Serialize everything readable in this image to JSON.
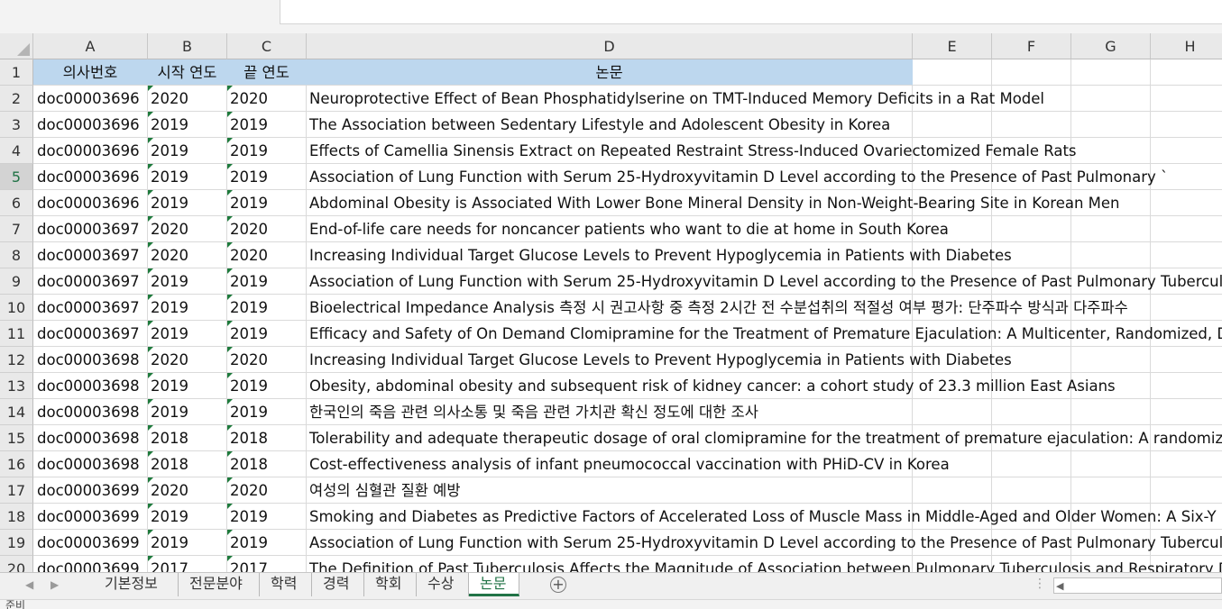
{
  "columns": [
    "A",
    "B",
    "C",
    "D",
    "E",
    "F",
    "G",
    "H"
  ],
  "header_row": {
    "number": "1",
    "cells": [
      "의사번호",
      "시작 연도",
      "끝 연도",
      "논문"
    ]
  },
  "rows": [
    {
      "n": "2",
      "id": "doc00003696",
      "start": "2020",
      "end": "2020",
      "title": "Neuroprotective Effect of Bean Phosphatidylserine on TMT-Induced Memory Deficits in a Rat Model"
    },
    {
      "n": "3",
      "id": "doc00003696",
      "start": "2019",
      "end": "2019",
      "title": "The Association between Sedentary Lifestyle and Adolescent Obesity in Korea"
    },
    {
      "n": "4",
      "id": "doc00003696",
      "start": "2019",
      "end": "2019",
      "title": "Effects of Camellia Sinensis Extract on Repeated Restraint Stress-Induced Ovariectomized Female Rats"
    },
    {
      "n": "5",
      "id": "doc00003696",
      "start": "2019",
      "end": "2019",
      "title": "Association of Lung Function with Serum 25-Hydroxyvitamin D Level according to the Presence of Past Pulmonary `"
    },
    {
      "n": "6",
      "id": "doc00003696",
      "start": "2019",
      "end": "2019",
      "title": "Abdominal Obesity is Associated With Lower Bone Mineral Density in Non-Weight-Bearing Site in Korean Men"
    },
    {
      "n": "7",
      "id": "doc00003697",
      "start": "2020",
      "end": "2020",
      "title": "End-of-life care needs for noncancer patients who want to die at home in South Korea"
    },
    {
      "n": "8",
      "id": "doc00003697",
      "start": "2020",
      "end": "2020",
      "title": "Increasing Individual Target Glucose Levels to Prevent Hypoglycemia in Patients with Diabetes"
    },
    {
      "n": "9",
      "id": "doc00003697",
      "start": "2019",
      "end": "2019",
      "title": "Association of Lung Function with Serum 25-Hydroxyvitamin D Level according to the Presence of Past Pulmonary Tuberculo"
    },
    {
      "n": "10",
      "id": "doc00003697",
      "start": "2019",
      "end": "2019",
      "title": "Bioelectrical Impedance Analysis 측정 시 권고사항 중 측정 2시간 전 수분섭취의 적절성 여부 평가: 단주파수 방식과 다주파수"
    },
    {
      "n": "11",
      "id": "doc00003697",
      "start": "2019",
      "end": "2019",
      "title": "Efficacy and Safety of On Demand Clomipramine for the Treatment of Premature Ejaculation: A Multicenter, Randomized, Do"
    },
    {
      "n": "12",
      "id": "doc00003698",
      "start": "2020",
      "end": "2020",
      "title": "Increasing Individual Target Glucose Levels to Prevent Hypoglycemia in Patients with Diabetes"
    },
    {
      "n": "13",
      "id": "doc00003698",
      "start": "2019",
      "end": "2019",
      "title": "Obesity, abdominal obesity and subsequent risk of kidney cancer: a cohort study of 23.3 million East Asians"
    },
    {
      "n": "14",
      "id": "doc00003698",
      "start": "2019",
      "end": "2019",
      "title": "한국인의 죽음 관련 의사소통 및 죽음 관련 가치관 확신 정도에 대한 조사"
    },
    {
      "n": "15",
      "id": "doc00003698",
      "start": "2018",
      "end": "2018",
      "title": "Tolerability and adequate therapeutic dosage of oral clomipramine for the treatment of premature ejaculation: A randomized"
    },
    {
      "n": "16",
      "id": "doc00003698",
      "start": "2018",
      "end": "2018",
      "title": "Cost-effectiveness analysis of infant pneumococcal vaccination with PHiD-CV in Korea"
    },
    {
      "n": "17",
      "id": "doc00003699",
      "start": "2020",
      "end": "2020",
      "title": "여성의 심혈관 질환 예방"
    },
    {
      "n": "18",
      "id": "doc00003699",
      "start": "2019",
      "end": "2019",
      "title": "Smoking and Diabetes as Predictive Factors of Accelerated Loss of Muscle Mass in Middle-Aged and Older Women: A Six-Y"
    },
    {
      "n": "19",
      "id": "doc00003699",
      "start": "2019",
      "end": "2019",
      "title": "Association of Lung Function with Serum 25-Hydroxyvitamin D Level according to the Presence of Past Pulmonary Tuberculo"
    },
    {
      "n": "20",
      "id": "doc00003699",
      "start": "2017",
      "end": "2017",
      "title": "The Definition of Past Tuberculosis Affects the Magnitude of Association between Pulmonary Tuberculosis and Respiratory D"
    }
  ],
  "selected_row": "5",
  "sheet_tabs": [
    "기본정보",
    "전문분야",
    "학력",
    "경력",
    "학회",
    "수상",
    "논문"
  ],
  "active_tab": "논문",
  "status_text": "준비",
  "colors": {
    "header_fill": "#bdd7ee",
    "accent": "#217346",
    "grid": "#dadada"
  }
}
